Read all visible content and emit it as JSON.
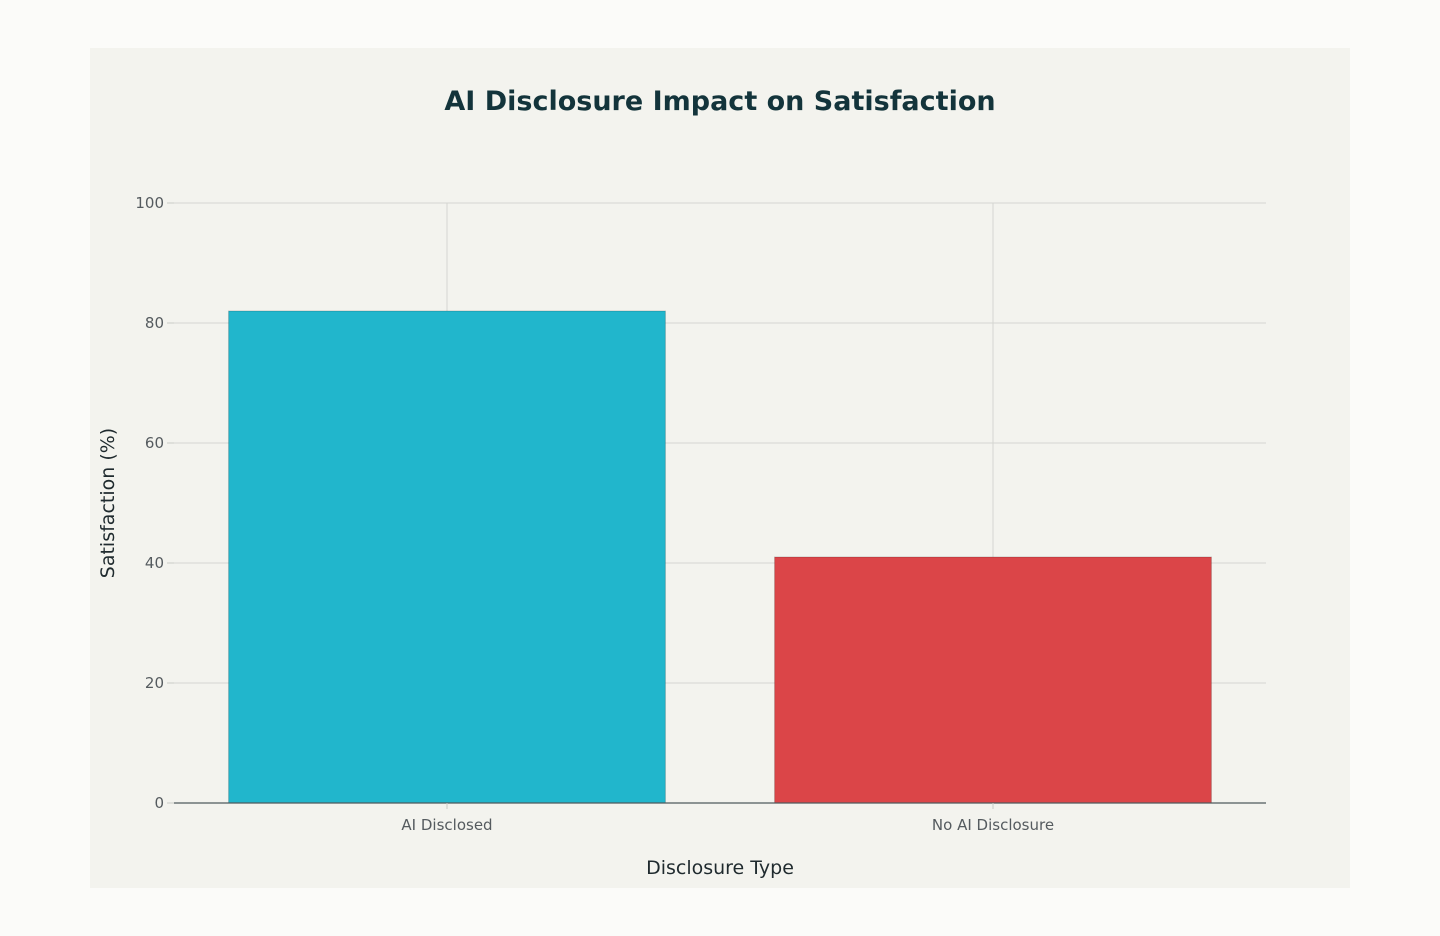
{
  "chart_data": {
    "type": "bar",
    "title": "AI Disclosure Impact on Satisfaction",
    "xlabel": "Disclosure Type",
    "ylabel": "Satisfaction (%)",
    "categories": [
      "AI Disclosed",
      "No AI Disclosure"
    ],
    "values": [
      82,
      41
    ],
    "colors": [
      "#21b6cc",
      "#db4548"
    ],
    "ylim": [
      0,
      100
    ],
    "yticks": [
      0,
      20,
      40,
      60,
      80,
      100
    ],
    "grid": true,
    "legend": "none"
  }
}
